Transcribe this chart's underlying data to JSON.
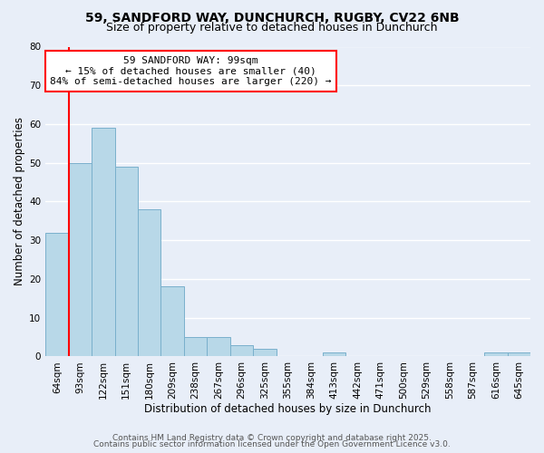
{
  "title_line1": "59, SANDFORD WAY, DUNCHURCH, RUGBY, CV22 6NB",
  "title_line2": "Size of property relative to detached houses in Dunchurch",
  "xlabel": "Distribution of detached houses by size in Dunchurch",
  "ylabel": "Number of detached properties",
  "bar_labels": [
    "64sqm",
    "93sqm",
    "122sqm",
    "151sqm",
    "180sqm",
    "209sqm",
    "238sqm",
    "267sqm",
    "296sqm",
    "325sqm",
    "355sqm",
    "384sqm",
    "413sqm",
    "442sqm",
    "471sqm",
    "500sqm",
    "529sqm",
    "558sqm",
    "587sqm",
    "616sqm",
    "645sqm"
  ],
  "bar_values": [
    32,
    50,
    59,
    49,
    38,
    18,
    5,
    5,
    3,
    2,
    0,
    0,
    1,
    0,
    0,
    0,
    0,
    0,
    0,
    1,
    1
  ],
  "bar_color": "#b8d8e8",
  "bar_edgecolor": "#7ab0cc",
  "vline_x": 1,
  "vline_color": "red",
  "annotation_box_text": "59 SANDFORD WAY: 99sqm\n← 15% of detached houses are smaller (40)\n84% of semi-detached houses are larger (220) →",
  "box_edgecolor": "red",
  "box_facecolor": "white",
  "ylim": [
    0,
    80
  ],
  "yticks": [
    0,
    10,
    20,
    30,
    40,
    50,
    60,
    70,
    80
  ],
  "footer_line1": "Contains HM Land Registry data © Crown copyright and database right 2025.",
  "footer_line2": "Contains public sector information licensed under the Open Government Licence v3.0.",
  "bg_color": "#e8eef8",
  "grid_color": "white",
  "title_fontsize": 10,
  "subtitle_fontsize": 9,
  "axis_label_fontsize": 8.5,
  "tick_fontsize": 7.5,
  "annotation_fontsize": 8,
  "footer_fontsize": 6.5
}
